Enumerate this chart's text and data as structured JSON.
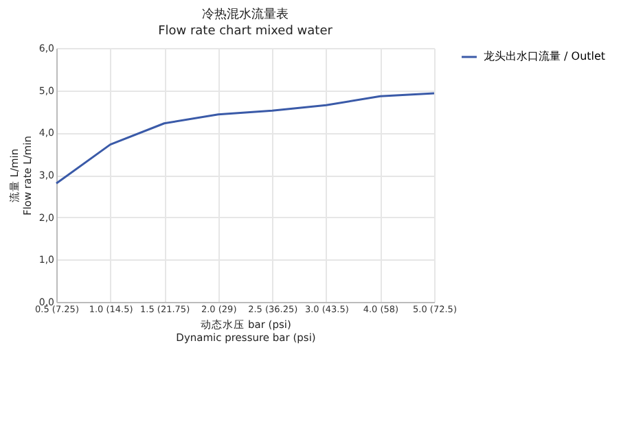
{
  "chart_data": {
    "type": "line",
    "title": "冷热混水流量表",
    "subtitle": "Flow rate chart mixed water",
    "xlabel": "动态水压 bar (psi)\nDynamic pressure bar (psi)",
    "ylabel": "流量  L/min\nFlow rate L/min",
    "categories": [
      "0.5 (7.25)",
      "1.0 (14.5)",
      "1.5 (21.75)",
      "2.0 (29)",
      "2.5 (36.25)",
      "3.0 (43.5)",
      "4.0 (58)",
      "5.0 (72.5)"
    ],
    "series": [
      {
        "name": "龙头出水口流量 / Outlet",
        "color": "#3a5aa8",
        "values": [
          2.8,
          3.72,
          4.22,
          4.43,
          4.52,
          4.65,
          4.86,
          4.93
        ]
      }
    ],
    "ylim": [
      0,
      6
    ],
    "yticks": [
      {
        "value": 0,
        "label": "0,0"
      },
      {
        "value": 1,
        "label": "1,0"
      },
      {
        "value": 2,
        "label": "2,0"
      },
      {
        "value": 3,
        "label": "3,0"
      },
      {
        "value": 4,
        "label": "4,0"
      },
      {
        "value": 5,
        "label": "5,0"
      },
      {
        "value": 6,
        "label": "6,0"
      }
    ],
    "grid": true,
    "legend": "right",
    "marker": "none",
    "line_style": "solid"
  }
}
